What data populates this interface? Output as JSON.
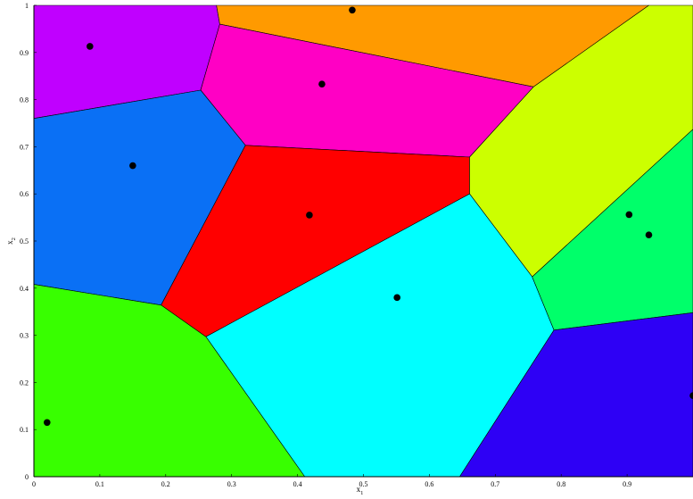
{
  "chart_data": {
    "type": "voronoi",
    "title": "",
    "xlabel": "x",
    "xlabel_sub": "1",
    "ylabel": "x",
    "ylabel_sub": "2",
    "xlim": [
      0,
      1
    ],
    "ylim": [
      0,
      1
    ],
    "xticks": [
      "0",
      "0.1",
      "0.2",
      "0.3",
      "0.4",
      "0.5",
      "0.6",
      "0.7",
      "0.8",
      "0.9"
    ],
    "yticks": [
      "0",
      "0.1",
      "0.2",
      "0.3",
      "0.4",
      "0.5",
      "0.6",
      "0.7",
      "0.8",
      "0.9",
      "1"
    ],
    "grid": false,
    "seeds": [
      {
        "x": 0.085,
        "y": 0.913
      },
      {
        "x": 0.483,
        "y": 0.99
      },
      {
        "x": 0.437,
        "y": 0.833
      },
      {
        "x": 0.15,
        "y": 0.66
      },
      {
        "x": 0.418,
        "y": 0.555
      },
      {
        "x": 0.551,
        "y": 0.38
      },
      {
        "x": 0.903,
        "y": 0.556
      },
      {
        "x": 0.933,
        "y": 0.513
      },
      {
        "x": 0.02,
        "y": 0.115
      },
      {
        "x": 1.0,
        "y": 0.172
      }
    ],
    "cells": [
      {
        "color": "#c000ff",
        "points": [
          [
            0,
            0.76
          ],
          [
            0.253,
            0.82
          ],
          [
            0.282,
            0.96
          ],
          [
            0.277,
            1
          ],
          [
            0,
            1
          ]
        ]
      },
      {
        "color": "#ff9a00",
        "points": [
          [
            0.277,
            1
          ],
          [
            0.933,
            1
          ],
          [
            0.758,
            0.827
          ],
          [
            0.282,
            0.96
          ]
        ]
      },
      {
        "color": "#ff00c4",
        "points": [
          [
            0.282,
            0.96
          ],
          [
            0.758,
            0.827
          ],
          [
            0.661,
            0.678
          ],
          [
            0.321,
            0.703
          ],
          [
            0.253,
            0.82
          ]
        ]
      },
      {
        "color": "#0a70f5",
        "points": [
          [
            0,
            0.76
          ],
          [
            0.253,
            0.82
          ],
          [
            0.321,
            0.703
          ],
          [
            0.193,
            0.364
          ],
          [
            0,
            0.408
          ]
        ]
      },
      {
        "color": "#ff0000",
        "points": [
          [
            0.321,
            0.703
          ],
          [
            0.661,
            0.678
          ],
          [
            0.661,
            0.6
          ],
          [
            0.261,
            0.297
          ],
          [
            0.193,
            0.364
          ]
        ]
      },
      {
        "color": "#ccff00",
        "points": [
          [
            0.758,
            0.827
          ],
          [
            0.933,
            1
          ],
          [
            1,
            1
          ],
          [
            1,
            0.737
          ],
          [
            0.756,
            0.424
          ],
          [
            0.661,
            0.6
          ],
          [
            0.661,
            0.678
          ]
        ]
      },
      {
        "color": "#00ffff",
        "points": [
          [
            0.661,
            0.6
          ],
          [
            0.756,
            0.424
          ],
          [
            0.789,
            0.311
          ],
          [
            0.646,
            0
          ],
          [
            0.411,
            0
          ],
          [
            0.261,
            0.297
          ]
        ]
      },
      {
        "color": "#00ff6a",
        "points": [
          [
            0.756,
            0.424
          ],
          [
            1,
            0.737
          ],
          [
            1,
            0.348
          ],
          [
            0.789,
            0.311
          ]
        ]
      },
      {
        "color": "#2e00f5",
        "points": [
          [
            0.789,
            0.311
          ],
          [
            1,
            0.348
          ],
          [
            1,
            0
          ],
          [
            0.646,
            0
          ]
        ]
      },
      {
        "color": "#38ff00",
        "points": [
          [
            0,
            0.408
          ],
          [
            0.193,
            0.364
          ],
          [
            0.261,
            0.297
          ],
          [
            0.411,
            0
          ],
          [
            0,
            0
          ]
        ]
      }
    ]
  }
}
